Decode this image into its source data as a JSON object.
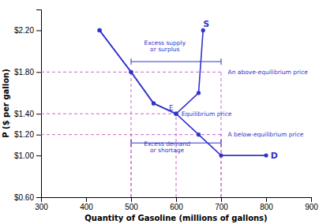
{
  "chart_data": {
    "type": "line",
    "xlabel": "Quantity of Gasoline (millions of gallons)",
    "ylabel": "P ($ per gallon)",
    "color": "#3333cc",
    "xlim": [
      300,
      900
    ],
    "ylim": [
      0.6,
      2.4
    ],
    "xticks": [
      300,
      400,
      500,
      600,
      700,
      800,
      900
    ],
    "yticks": [
      {
        "value": 0.6,
        "label": "$0.60"
      },
      {
        "value": 1.0,
        "label": "$1.00"
      },
      {
        "value": 1.2,
        "label": "$1.20"
      },
      {
        "value": 1.4,
        "label": "$1.40"
      },
      {
        "value": 1.8,
        "label": "$1.80"
      },
      {
        "value": 2.2,
        "label": "$2.20"
      }
    ],
    "series": [
      {
        "name": "S",
        "color": "#3333cc",
        "marker": "circle",
        "x": [
          430,
          500,
          550,
          600,
          650,
          660
        ],
        "values": [
          2.2,
          1.8,
          1.5,
          1.4,
          1.6,
          2.2
        ],
        "name_x": 660,
        "name_y": 2.22
      },
      {
        "name": "D",
        "color": "#3333cc",
        "marker": "circle",
        "x": [
          430,
          500,
          550,
          600,
          650,
          700,
          800
        ],
        "values": [
          2.2,
          1.8,
          1.5,
          1.4,
          1.2,
          1.0,
          1.0
        ],
        "name_x": 810,
        "name_y": 1.0
      }
    ],
    "lines": [
      {
        "x": [
          300,
          700
        ],
        "y": [
          1.8,
          1.8
        ],
        "color": "#cc66cc",
        "line_style": "dashed"
      },
      {
        "x": [
          500,
          500
        ],
        "y": [
          0.6,
          1.8
        ],
        "color": "#cc66cc",
        "line_style": "dashed"
      },
      {
        "x": [
          700,
          700
        ],
        "y": [
          0.6,
          1.8
        ],
        "color": "#cc66cc",
        "line_style": "dashed"
      },
      {
        "x": [
          300,
          600
        ],
        "y": [
          1.4,
          1.4
        ],
        "color": "#cc66cc",
        "line_style": "dashed"
      },
      {
        "x": [
          600,
          600
        ],
        "y": [
          0.6,
          1.4
        ],
        "color": "#cc66cc",
        "line_style": "dashed"
      },
      {
        "x": [
          300,
          700
        ],
        "y": [
          1.2,
          1.2
        ],
        "color": "#cc66cc",
        "line_style": "dashed"
      },
      {
        "x": [
          500,
          500
        ],
        "y": [
          0.6,
          1.2
        ],
        "color": "#cc66cc",
        "line_style": "dashed"
      },
      {
        "x": [
          700,
          700
        ],
        "y": [
          0.6,
          1.2
        ],
        "color": "#cc66cc",
        "line_style": "dashed"
      }
    ],
    "brackets": [
      {
        "x": [
          500,
          700
        ],
        "y": 1.9
      },
      {
        "x": [
          500,
          700
        ],
        "y": 1.12
      }
    ],
    "annotations": [
      {
        "text": "E",
        "x": 594,
        "y": 1.42
      },
      {
        "text": "An above-equilibrium price",
        "x": 715,
        "y": 1.8
      },
      {
        "text": "A below-equilibrium price",
        "x": 715,
        "y": 1.2
      },
      {
        "text": "Equilibrium price",
        "x": 612,
        "y": 1.4
      },
      {
        "text": "Excess supply\nor surplus",
        "x": 575,
        "y": 2.05
      },
      {
        "text": "Excess demand\nor shortage",
        "x": 580,
        "y": 1.08
      }
    ]
  }
}
